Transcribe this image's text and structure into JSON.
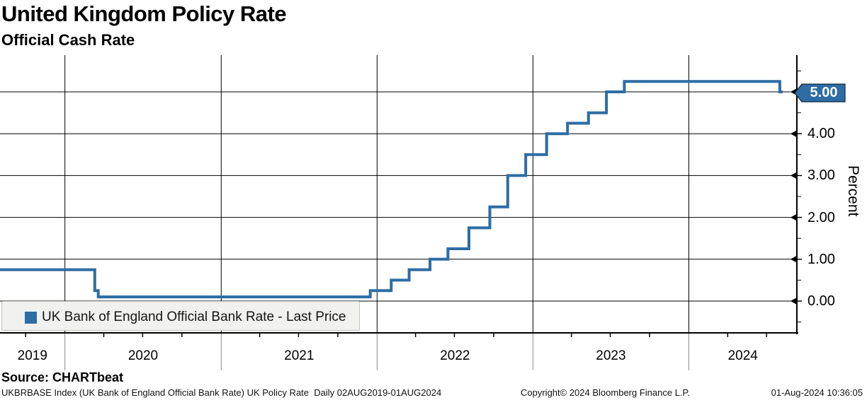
{
  "chart_data": {
    "type": "line",
    "step": true,
    "title": "United Kingdom Policy Rate",
    "subtitle": "Official Cash Rate",
    "ylabel": "Percent",
    "series": [
      {
        "name": "UK Bank of England Official Bank Rate - Last Price",
        "color": "#2d6ca4",
        "points": [
          [
            "2019-08-02",
            0.75
          ],
          [
            "2020-03-11",
            0.25
          ],
          [
            "2020-03-19",
            0.1
          ],
          [
            "2021-12-16",
            0.25
          ],
          [
            "2022-02-03",
            0.5
          ],
          [
            "2022-03-17",
            0.75
          ],
          [
            "2022-05-05",
            1.0
          ],
          [
            "2022-06-16",
            1.25
          ],
          [
            "2022-08-04",
            1.75
          ],
          [
            "2022-09-22",
            2.25
          ],
          [
            "2022-11-03",
            3.0
          ],
          [
            "2022-12-15",
            3.5
          ],
          [
            "2023-02-02",
            4.0
          ],
          [
            "2023-03-23",
            4.25
          ],
          [
            "2023-05-11",
            4.5
          ],
          [
            "2023-06-22",
            5.0
          ],
          [
            "2023-08-03",
            5.25
          ],
          [
            "2024-08-01",
            5.0
          ]
        ]
      }
    ],
    "y_ticks": [
      "0.00",
      "1.00",
      "2.00",
      "3.00",
      "4.00"
    ],
    "x_ticks": [
      "2019",
      "2020",
      "2021",
      "2022",
      "2023",
      "2024"
    ],
    "last_price": "5.00",
    "last_price_color": "#2d6ca4",
    "ylim": [
      -0.76,
      5.88
    ],
    "x_range": [
      "2019-08-02",
      "2024-09-10"
    ],
    "grid": true,
    "legend_position": "bottom-left"
  },
  "footer": {
    "source": "Source: CHARTbeat",
    "description": "UKBRBASE Index (UK Bank of England Official Bank Rate) UK Policy Rate  Daily 02AUG2019-01AUG2024",
    "copyright": "Copyright© 2024 Bloomberg Finance L.P.",
    "datetime": "01-Aug-2024 10:36:05"
  }
}
